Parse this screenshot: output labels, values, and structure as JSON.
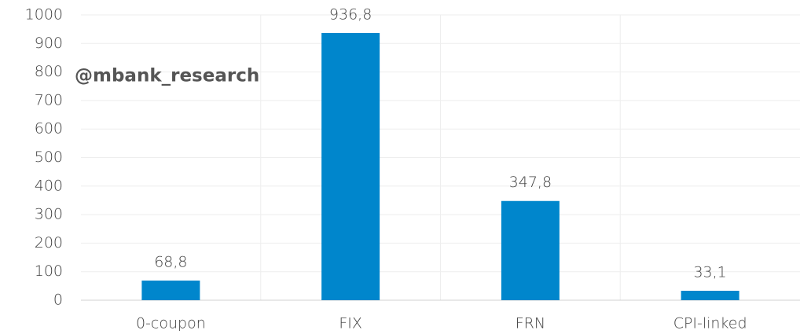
{
  "chart_data": {
    "type": "bar",
    "annotation": "@mbank_research",
    "categories": [
      "0-coupon",
      "FIX",
      "FRN",
      "CPI-linked"
    ],
    "values": [
      68.8,
      936.8,
      347.8,
      33.1
    ],
    "value_labels": [
      "68,8",
      "936,8",
      "347,8",
      "33,1"
    ],
    "color": "#0086cc",
    "ylim": [
      0,
      1000
    ],
    "yticks": [
      0,
      100,
      200,
      300,
      400,
      500,
      600,
      700,
      800,
      900,
      1000
    ],
    "grid": true
  }
}
